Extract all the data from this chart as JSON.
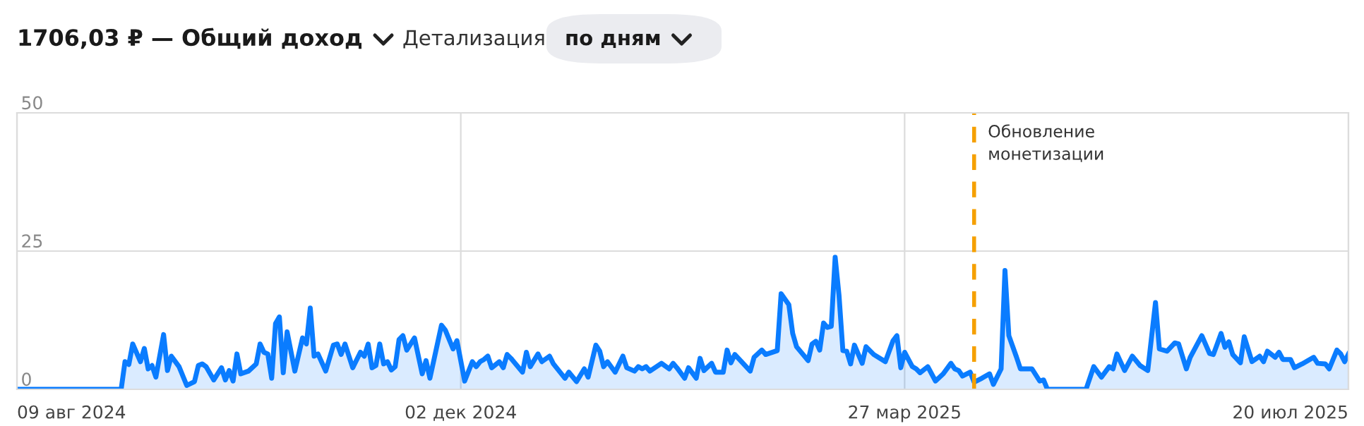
{
  "chart_data": {
    "type": "area",
    "title": "1706,03 ₽ — Общий доход",
    "annotations": [
      "Детализация",
      "по дням"
    ],
    "x": [
      "2024-08-09",
      "2024-09-05",
      "2024-09-06",
      "2024-09-07",
      "2024-09-08",
      "2024-09-10",
      "2024-09-11",
      "2024-09-12",
      "2024-09-13",
      "2024-09-14",
      "2024-09-16",
      "2024-09-17",
      "2024-09-18",
      "2024-09-20",
      "2024-09-22",
      "2024-09-24",
      "2024-09-25",
      "2024-09-26",
      "2024-09-27",
      "2024-09-29",
      "2024-10-01",
      "2024-10-02",
      "2024-10-03",
      "2024-10-04",
      "2024-10-05",
      "2024-10-06",
      "2024-10-08",
      "2024-10-10",
      "2024-10-11",
      "2024-10-12",
      "2024-10-13",
      "2024-10-14",
      "2024-10-15",
      "2024-10-16",
      "2024-10-17",
      "2024-10-18",
      "2024-10-20",
      "2024-10-22",
      "2024-10-23",
      "2024-10-24",
      "2024-10-25",
      "2024-10-26",
      "2024-10-28",
      "2024-10-30",
      "2024-10-31",
      "2024-11-01",
      "2024-11-02",
      "2024-11-04",
      "2024-11-06",
      "2024-11-07",
      "2024-11-08",
      "2024-11-09",
      "2024-11-10",
      "2024-11-11",
      "2024-11-12",
      "2024-11-13",
      "2024-11-14",
      "2024-11-15",
      "2024-11-16",
      "2024-11-17",
      "2024-11-18",
      "2024-11-20",
      "2024-11-22",
      "2024-11-23",
      "2024-11-24",
      "2024-11-27",
      "2024-11-28",
      "2024-11-30",
      "2024-12-01",
      "2024-12-03",
      "2024-12-05",
      "2024-12-06",
      "2024-12-07",
      "2024-12-08",
      "2024-12-09",
      "2024-12-10",
      "2024-12-12",
      "2024-12-13",
      "2024-12-14",
      "2024-12-15",
      "2024-12-18",
      "2024-12-19",
      "2024-12-20",
      "2024-12-22",
      "2024-12-23",
      "2024-12-25",
      "2024-12-26",
      "2024-12-29",
      "2024-12-30",
      "2025-01-01",
      "2025-01-03",
      "2025-01-04",
      "2025-01-06",
      "2025-01-07",
      "2025-01-08",
      "2025-01-09",
      "2025-01-11",
      "2025-01-13",
      "2025-01-14",
      "2025-01-16",
      "2025-01-17",
      "2025-01-18",
      "2025-01-19",
      "2025-01-20",
      "2025-01-23",
      "2025-01-25",
      "2025-01-26",
      "2025-01-27",
      "2025-01-29",
      "2025-01-30",
      "2025-02-01",
      "2025-02-02",
      "2025-02-03",
      "2025-02-05",
      "2025-02-06",
      "2025-02-08",
      "2025-02-09",
      "2025-02-10",
      "2025-02-11",
      "2025-02-15",
      "2025-02-16",
      "2025-02-18",
      "2025-02-19",
      "2025-02-22",
      "2025-02-23",
      "2025-02-25",
      "2025-02-26",
      "2025-02-27",
      "2025-03-02",
      "2025-03-03",
      "2025-03-04",
      "2025-03-05",
      "2025-03-06",
      "2025-03-07",
      "2025-03-08",
      "2025-03-09",
      "2025-03-10",
      "2025-03-11",
      "2025-03-12",
      "2025-03-13",
      "2025-03-14",
      "2025-03-16",
      "2025-03-17",
      "2025-03-19",
      "2025-03-22",
      "2025-03-24",
      "2025-03-25",
      "2025-03-26",
      "2025-03-27",
      "2025-03-29",
      "2025-03-30",
      "2025-03-31",
      "2025-04-02",
      "2025-04-04",
      "2025-04-06",
      "2025-04-08",
      "2025-04-09",
      "2025-04-10",
      "2025-04-11",
      "2025-04-13",
      "2025-04-14",
      "2025-04-16",
      "2025-04-18",
      "2025-04-19",
      "2025-04-21",
      "2025-04-22",
      "2025-04-23",
      "2025-04-25",
      "2025-04-26",
      "2025-04-29",
      "2025-05-01",
      "2025-05-02",
      "2025-05-03",
      "2025-05-13",
      "2025-05-15",
      "2025-05-17",
      "2025-05-19",
      "2025-05-20",
      "2025-05-21",
      "2025-05-23",
      "2025-05-25",
      "2025-05-27",
      "2025-05-29",
      "2025-05-31",
      "2025-06-01",
      "2025-06-03",
      "2025-06-05",
      "2025-06-06",
      "2025-06-08",
      "2025-06-09",
      "2025-06-12",
      "2025-06-14",
      "2025-06-15",
      "2025-06-17",
      "2025-06-18",
      "2025-06-19",
      "2025-06-20",
      "2025-06-22",
      "2025-06-23",
      "2025-06-25",
      "2025-06-27",
      "2025-06-28",
      "2025-06-29",
      "2025-07-01",
      "2025-07-02",
      "2025-07-03",
      "2025-07-05",
      "2025-07-06",
      "2025-07-08",
      "2025-07-11",
      "2025-07-12",
      "2025-07-14",
      "2025-07-15",
      "2025-07-17",
      "2025-07-18",
      "2025-07-19",
      "2025-07-20"
    ],
    "series": [
      {
        "color": "#0a7cff",
        "values": [
          0,
          0,
          5,
          4.5,
          8.2,
          5,
          7.4,
          3.7,
          4.3,
          2.2,
          9.9,
          3.4,
          6,
          4.1,
          0.7,
          1.4,
          4.3,
          4.6,
          4.1,
          1.7,
          3.9,
          1.7,
          3.4,
          1.5,
          6.4,
          2.8,
          3.3,
          4.6,
          8.2,
          6.7,
          6.4,
          2,
          11.9,
          13.1,
          3,
          10.4,
          3.3,
          9.3,
          8.2,
          14.7,
          6,
          6.4,
          3.3,
          8,
          8.2,
          6.3,
          8.2,
          3.9,
          6.7,
          6,
          8.2,
          3.9,
          4.3,
          8.2,
          4.6,
          5,
          3.5,
          4.1,
          9,
          9.7,
          7.1,
          9.3,
          2.8,
          5.2,
          2,
          11.6,
          10.7,
          7.3,
          8.8,
          1.5,
          5,
          4.1,
          5,
          5.4,
          6,
          3.9,
          5,
          3.9,
          6.3,
          5.6,
          3.1,
          6.7,
          4.1,
          6.4,
          5,
          6,
          4.6,
          2,
          3.1,
          1.4,
          3.7,
          2.2,
          8,
          6.9,
          4.1,
          5,
          3.1,
          6,
          3.9,
          3.3,
          4.1,
          3.7,
          4.1,
          3.3,
          4.7,
          3.7,
          4.7,
          3.9,
          2,
          3.9,
          2,
          5.6,
          3.4,
          4.7,
          3.1,
          3.1,
          7.1,
          4.8,
          6.3,
          3.3,
          5.8,
          7.1,
          6.3,
          7,
          17.3,
          15.3,
          10.1,
          7.7,
          5.2,
          8.2,
          8.7,
          7.1,
          12,
          11.2,
          11.4,
          23.9,
          17,
          7,
          6.9,
          4.6,
          8,
          4.7,
          7.7,
          6.3,
          5,
          8.8,
          9.7,
          3.9,
          6.7,
          4.1,
          3.7,
          3,
          4.1,
          1.5,
          2.8,
          4.7,
          3.7,
          3.4,
          2.4,
          3.1,
          1.3,
          2,
          2.8,
          0.9,
          3.7,
          21.5,
          9.7,
          5.8,
          3.7,
          3.7,
          1.5,
          1.7,
          0,
          0,
          4.1,
          2.2,
          4.1,
          3.7,
          6.4,
          3.4,
          6,
          4.3,
          3.4,
          15.7,
          7.3,
          6.9,
          8.4,
          8.2,
          3.7,
          5.8,
          9.7,
          6.5,
          6.3,
          10.1,
          7.6,
          8.6,
          6.3,
          4.8,
          9.5,
          5,
          6,
          5,
          6.9,
          5.8,
          6.7,
          5.4,
          5.4,
          3.9,
          4.6,
          5.8,
          4.7,
          4.6,
          3.7,
          7.1,
          6.4,
          5,
          6.4
        ]
      }
    ],
    "xlim": [
      "2024-08-09",
      "2025-07-20"
    ],
    "xticks": [
      {
        "value": "2024-08-09",
        "label": "09 авг 2024"
      },
      {
        "value": "2024-12-02",
        "label": "02 дек 2024"
      },
      {
        "value": "2025-03-27",
        "label": "27 мар 2025"
      },
      {
        "value": "2025-07-20",
        "label": "20 июл 2025"
      }
    ],
    "ylim": [
      0,
      50
    ],
    "yticks": [
      0,
      25,
      50
    ],
    "grid": true,
    "ref_lines": [
      {
        "axis": "x",
        "value": "2025-04-14",
        "label": "Обновление\nмонетизации",
        "color": "#f5a000",
        "line_style": "dashed"
      }
    ]
  }
}
